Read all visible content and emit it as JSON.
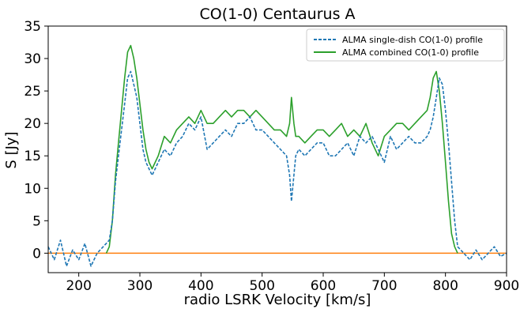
{
  "chart_data": {
    "type": "line",
    "title": "CO(1-0) Centaurus A",
    "xlabel": "radio LSRK Velocity [km/s]",
    "ylabel": "S [Jy]",
    "xlim": [
      150,
      900
    ],
    "ylim": [
      -3,
      35
    ],
    "xticks": [
      200,
      300,
      400,
      500,
      600,
      700,
      800,
      900
    ],
    "yticks": [
      0,
      5,
      10,
      15,
      20,
      25,
      30,
      35
    ],
    "grid": false,
    "legend_position": "top-right",
    "series": [
      {
        "name": "ALMA single-dish CO(1-0) profile",
        "color": "#1f77b4",
        "style": "dashed",
        "x": [
          150,
          160,
          170,
          180,
          190,
          200,
          210,
          220,
          230,
          240,
          250,
          255,
          260,
          265,
          270,
          275,
          280,
          285,
          290,
          295,
          300,
          305,
          310,
          315,
          320,
          330,
          340,
          350,
          360,
          370,
          380,
          390,
          400,
          410,
          420,
          430,
          440,
          450,
          460,
          470,
          480,
          490,
          500,
          510,
          520,
          530,
          540,
          545,
          548,
          552,
          555,
          560,
          570,
          580,
          590,
          600,
          610,
          620,
          630,
          640,
          650,
          660,
          670,
          680,
          690,
          700,
          710,
          720,
          730,
          740,
          750,
          760,
          770,
          775,
          780,
          785,
          790,
          795,
          800,
          805,
          810,
          815,
          820,
          830,
          840,
          850,
          860,
          870,
          880,
          890,
          900
        ],
        "y": [
          1,
          -1,
          2,
          -2,
          0.5,
          -1,
          1.5,
          -2,
          0,
          1,
          2,
          5,
          11,
          15,
          19,
          23,
          27,
          28,
          26,
          24,
          20,
          16,
          14,
          13,
          12,
          14,
          16,
          15,
          17,
          18,
          20,
          19,
          21,
          16,
          17,
          18,
          19,
          18,
          20,
          20,
          21,
          19,
          19,
          18,
          17,
          16,
          15,
          12,
          8,
          12,
          15,
          16,
          15,
          16,
          17,
          17,
          15,
          15,
          16,
          17,
          15,
          18,
          17,
          18,
          16,
          14,
          18,
          16,
          17,
          18,
          17,
          17,
          18,
          19,
          21,
          24,
          27,
          26,
          22,
          17,
          11,
          5,
          1,
          0,
          -1,
          0.5,
          -1,
          0,
          1,
          -0.5,
          0
        ]
      },
      {
        "name": "ALMA combined CO(1-0) profile",
        "color": "#2ca02c",
        "style": "solid",
        "x": [
          245,
          250,
          255,
          260,
          265,
          270,
          275,
          280,
          285,
          290,
          295,
          300,
          305,
          310,
          315,
          320,
          330,
          340,
          350,
          360,
          370,
          380,
          390,
          400,
          410,
          420,
          430,
          440,
          450,
          460,
          470,
          480,
          490,
          500,
          510,
          520,
          530,
          540,
          545,
          548,
          552,
          555,
          560,
          570,
          580,
          590,
          600,
          610,
          620,
          630,
          640,
          650,
          660,
          670,
          680,
          690,
          700,
          710,
          720,
          730,
          740,
          750,
          760,
          770,
          775,
          780,
          785,
          790,
          795,
          800,
          805,
          810,
          815,
          820
        ],
        "y": [
          0,
          1,
          5,
          12,
          17,
          22,
          27,
          31,
          32,
          30,
          27,
          23,
          19,
          16,
          14,
          13,
          15,
          18,
          17,
          19,
          20,
          21,
          20,
          22,
          20,
          20,
          21,
          22,
          21,
          22,
          22,
          21,
          22,
          21,
          20,
          19,
          19,
          18,
          20,
          24,
          20,
          18,
          18,
          17,
          18,
          19,
          19,
          18,
          19,
          20,
          18,
          19,
          18,
          20,
          17,
          15,
          18,
          19,
          20,
          20,
          19,
          20,
          21,
          22,
          24,
          27,
          28,
          25,
          20,
          14,
          8,
          3,
          1,
          0
        ]
      },
      {
        "name": "",
        "color": "#ff7f0e",
        "style": "solid",
        "x": [
          150,
          900
        ],
        "y": [
          0,
          0
        ]
      }
    ]
  }
}
